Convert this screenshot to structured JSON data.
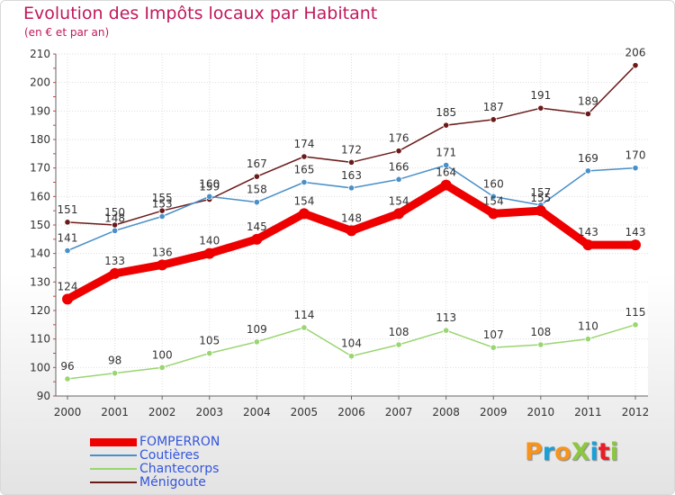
{
  "title": "Evolution des Impôts locaux par Habitant",
  "subtitle": "(en € et par an)",
  "logo": {
    "text": "ProXiti",
    "letters": [
      {
        "ch": "P",
        "color": "#f7941d"
      },
      {
        "ch": "r",
        "color": "#1aa0d8"
      },
      {
        "ch": "o",
        "color": "#f7941d"
      },
      {
        "ch": "X",
        "color": "#8dc63f"
      },
      {
        "ch": "i",
        "color": "#1aa0d8"
      },
      {
        "ch": "t",
        "color": "#ed1c24"
      },
      {
        "ch": "i",
        "color": "#8dc63f"
      }
    ]
  },
  "chart_data": {
    "type": "line",
    "title": "Evolution des Impôts locaux par Habitant",
    "subtitle": "(en € et par an)",
    "xlabel": "",
    "ylabel": "",
    "ylim": [
      90,
      210
    ],
    "yticks": [
      90,
      100,
      110,
      120,
      130,
      140,
      150,
      160,
      170,
      180,
      190,
      200,
      210
    ],
    "categories": [
      "2000",
      "2001",
      "2002",
      "2003",
      "2004",
      "2005",
      "2006",
      "2007",
      "2008",
      "2009",
      "2010",
      "2011",
      "2012"
    ],
    "grid": true,
    "legend_position": "bottom-left",
    "series": [
      {
        "name": "Ménigoute",
        "color": "#6b1a1a",
        "emphasis": false,
        "values": [
          151,
          150,
          155,
          159,
          167,
          174,
          172,
          176,
          185,
          187,
          191,
          189,
          206
        ]
      },
      {
        "name": "Coutières",
        "color": "#4a90c8",
        "emphasis": false,
        "values": [
          141,
          148,
          153,
          160,
          158,
          165,
          163,
          166,
          171,
          160,
          157,
          169,
          170
        ]
      },
      {
        "name": "Chantecorps",
        "color": "#99d570",
        "emphasis": false,
        "values": [
          96,
          98,
          100,
          105,
          109,
          114,
          104,
          108,
          113,
          107,
          108,
          110,
          115
        ]
      },
      {
        "name": "FOMPERRON",
        "color": "#ee0000",
        "emphasis": true,
        "values": [
          124,
          133,
          136,
          140,
          145,
          154,
          148,
          154,
          164,
          154,
          155,
          143,
          143
        ]
      }
    ],
    "legend_order": [
      "FOMPERRON",
      "Coutières",
      "Chantecorps",
      "Ménigoute"
    ]
  }
}
